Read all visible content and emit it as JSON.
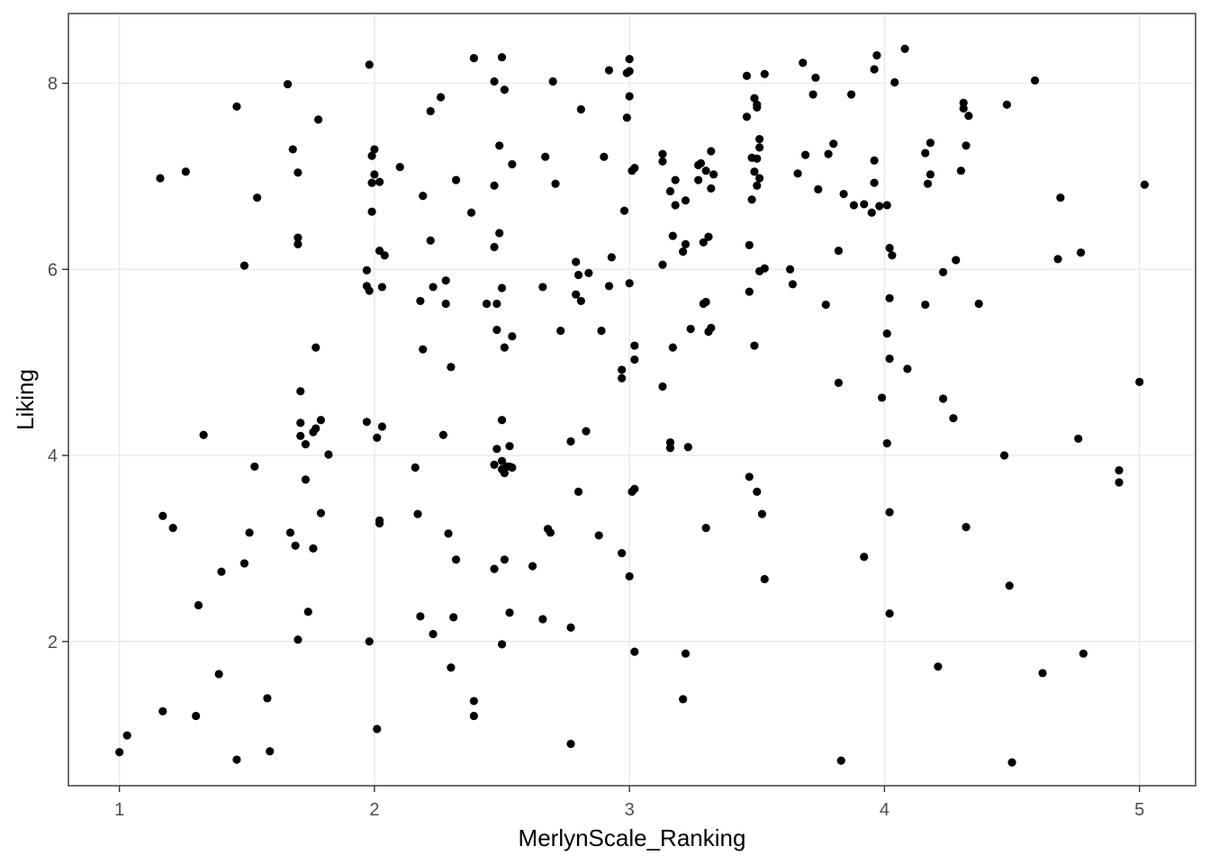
{
  "chart_data": {
    "type": "scatter",
    "title": "",
    "xlabel": "MerlynScale_Ranking",
    "ylabel": "Liking",
    "xlim": [
      0.8,
      5.22
    ],
    "ylim": [
      0.45,
      8.75
    ],
    "x_ticks": [
      1,
      2,
      3,
      4,
      5
    ],
    "y_ticks": [
      2,
      4,
      6,
      8
    ],
    "x_tick_labels": [
      "1",
      "2",
      "3",
      "4",
      "5"
    ],
    "y_tick_labels": [
      "2",
      "4",
      "6",
      "8"
    ],
    "grid": true,
    "legend": "none",
    "point_color": "#000000",
    "points": [
      [
        1.0,
        0.81
      ],
      [
        1.03,
        0.99
      ],
      [
        1.16,
        6.98
      ],
      [
        1.17,
        3.35
      ],
      [
        1.17,
        1.25
      ],
      [
        1.21,
        3.22
      ],
      [
        1.26,
        7.05
      ],
      [
        1.3,
        1.2
      ],
      [
        1.31,
        2.39
      ],
      [
        1.33,
        4.22
      ],
      [
        1.39,
        1.65
      ],
      [
        1.4,
        2.75
      ],
      [
        1.46,
        7.75
      ],
      [
        1.46,
        0.73
      ],
      [
        1.49,
        6.04
      ],
      [
        1.49,
        2.84
      ],
      [
        1.51,
        3.17
      ],
      [
        1.53,
        3.88
      ],
      [
        1.54,
        6.77
      ],
      [
        1.58,
        1.39
      ],
      [
        1.59,
        0.82
      ],
      [
        1.66,
        7.99
      ],
      [
        1.67,
        3.17
      ],
      [
        1.68,
        7.29
      ],
      [
        1.69,
        3.03
      ],
      [
        1.7,
        7.04
      ],
      [
        1.7,
        6.34
      ],
      [
        1.7,
        6.27
      ],
      [
        1.7,
        2.02
      ],
      [
        1.71,
        4.69
      ],
      [
        1.71,
        4.35
      ],
      [
        1.71,
        4.21
      ],
      [
        1.73,
        4.12
      ],
      [
        1.73,
        3.74
      ],
      [
        1.74,
        2.32
      ],
      [
        1.76,
        4.25
      ],
      [
        1.76,
        3.0
      ],
      [
        1.77,
        4.29
      ],
      [
        1.77,
        5.16
      ],
      [
        1.78,
        7.61
      ],
      [
        1.79,
        4.38
      ],
      [
        1.79,
        3.38
      ],
      [
        1.82,
        4.01
      ],
      [
        1.97,
        5.99
      ],
      [
        1.97,
        5.82
      ],
      [
        1.97,
        4.36
      ],
      [
        1.98,
        8.2
      ],
      [
        1.98,
        2.0
      ],
      [
        1.98,
        5.77
      ],
      [
        1.99,
        7.22
      ],
      [
        1.99,
        6.93
      ],
      [
        1.99,
        6.62
      ],
      [
        2.0,
        7.29
      ],
      [
        2.0,
        7.02
      ],
      [
        2.01,
        4.19
      ],
      [
        2.01,
        1.06
      ],
      [
        2.02,
        6.2
      ],
      [
        2.02,
        6.94
      ],
      [
        2.02,
        3.3
      ],
      [
        2.02,
        3.27
      ],
      [
        2.03,
        4.31
      ],
      [
        2.03,
        5.81
      ],
      [
        2.04,
        6.15
      ],
      [
        2.1,
        7.1
      ],
      [
        2.16,
        3.87
      ],
      [
        2.17,
        3.37
      ],
      [
        2.18,
        2.27
      ],
      [
        2.18,
        5.66
      ],
      [
        2.19,
        6.79
      ],
      [
        2.19,
        5.14
      ],
      [
        2.22,
        7.7
      ],
      [
        2.22,
        6.31
      ],
      [
        2.23,
        5.81
      ],
      [
        2.23,
        2.08
      ],
      [
        2.26,
        7.85
      ],
      [
        2.27,
        4.22
      ],
      [
        2.28,
        5.88
      ],
      [
        2.28,
        5.63
      ],
      [
        2.29,
        3.16
      ],
      [
        2.3,
        4.95
      ],
      [
        2.3,
        1.72
      ],
      [
        2.31,
        2.26
      ],
      [
        2.32,
        6.96
      ],
      [
        2.32,
        2.88
      ],
      [
        2.38,
        6.61
      ],
      [
        2.39,
        8.27
      ],
      [
        2.39,
        1.36
      ],
      [
        2.39,
        1.2
      ],
      [
        2.44,
        5.63
      ],
      [
        2.47,
        8.02
      ],
      [
        2.47,
        6.9
      ],
      [
        2.47,
        6.24
      ],
      [
        2.47,
        3.9
      ],
      [
        2.47,
        2.78
      ],
      [
        2.48,
        5.35
      ],
      [
        2.48,
        5.63
      ],
      [
        2.48,
        4.07
      ],
      [
        2.49,
        7.33
      ],
      [
        2.49,
        6.39
      ],
      [
        2.5,
        8.28
      ],
      [
        2.5,
        5.8
      ],
      [
        2.5,
        4.38
      ],
      [
        2.5,
        3.94
      ],
      [
        2.5,
        3.85
      ],
      [
        2.5,
        1.97
      ],
      [
        2.51,
        7.93
      ],
      [
        2.51,
        5.16
      ],
      [
        2.51,
        3.81
      ],
      [
        2.51,
        2.88
      ],
      [
        2.52,
        3.88
      ],
      [
        2.53,
        3.88
      ],
      [
        2.53,
        2.31
      ],
      [
        2.53,
        4.1
      ],
      [
        2.54,
        7.13
      ],
      [
        2.54,
        5.28
      ],
      [
        2.54,
        3.87
      ],
      [
        2.62,
        2.81
      ],
      [
        2.66,
        2.24
      ],
      [
        2.66,
        5.81
      ],
      [
        2.67,
        7.21
      ],
      [
        2.68,
        3.21
      ],
      [
        2.69,
        3.17
      ],
      [
        2.7,
        8.02
      ],
      [
        2.71,
        6.92
      ],
      [
        2.73,
        5.34
      ],
      [
        2.77,
        4.15
      ],
      [
        2.77,
        2.15
      ],
      [
        2.77,
        0.9
      ],
      [
        2.79,
        6.08
      ],
      [
        2.79,
        5.73
      ],
      [
        2.8,
        5.94
      ],
      [
        2.8,
        3.61
      ],
      [
        2.81,
        5.66
      ],
      [
        2.81,
        7.72
      ],
      [
        2.83,
        4.26
      ],
      [
        2.84,
        5.96
      ],
      [
        2.88,
        3.14
      ],
      [
        2.89,
        5.34
      ],
      [
        2.9,
        7.21
      ],
      [
        2.92,
        8.14
      ],
      [
        2.92,
        5.82
      ],
      [
        2.93,
        6.13
      ],
      [
        2.97,
        2.95
      ],
      [
        2.97,
        4.92
      ],
      [
        2.97,
        4.83
      ],
      [
        2.98,
        6.63
      ],
      [
        2.99,
        7.63
      ],
      [
        2.99,
        8.11
      ],
      [
        3.0,
        7.86
      ],
      [
        3.0,
        8.26
      ],
      [
        3.0,
        8.13
      ],
      [
        3.0,
        5.85
      ],
      [
        3.0,
        2.7
      ],
      [
        3.01,
        7.06
      ],
      [
        3.01,
        3.61
      ],
      [
        3.02,
        7.09
      ],
      [
        3.02,
        3.64
      ],
      [
        3.02,
        5.18
      ],
      [
        3.02,
        5.03
      ],
      [
        3.02,
        1.89
      ],
      [
        3.13,
        7.16
      ],
      [
        3.13,
        7.24
      ],
      [
        3.13,
        6.05
      ],
      [
        3.13,
        4.74
      ],
      [
        3.16,
        6.84
      ],
      [
        3.16,
        4.14
      ],
      [
        3.16,
        4.08
      ],
      [
        3.17,
        5.16
      ],
      [
        3.17,
        6.36
      ],
      [
        3.18,
        6.69
      ],
      [
        3.18,
        6.96
      ],
      [
        3.21,
        6.19
      ],
      [
        3.21,
        1.38
      ],
      [
        3.22,
        6.27
      ],
      [
        3.22,
        6.74
      ],
      [
        3.22,
        1.87
      ],
      [
        3.23,
        4.09
      ],
      [
        3.24,
        5.36
      ],
      [
        3.27,
        7.12
      ],
      [
        3.27,
        6.96
      ],
      [
        3.28,
        7.14
      ],
      [
        3.29,
        6.29
      ],
      [
        3.29,
        5.63
      ],
      [
        3.3,
        5.65
      ],
      [
        3.3,
        7.06
      ],
      [
        3.3,
        3.22
      ],
      [
        3.31,
        5.33
      ],
      [
        3.31,
        6.35
      ],
      [
        3.32,
        7.27
      ],
      [
        3.32,
        6.87
      ],
      [
        3.33,
        7.02
      ],
      [
        3.32,
        5.37
      ],
      [
        3.46,
        8.08
      ],
      [
        3.46,
        7.64
      ],
      [
        3.47,
        6.26
      ],
      [
        3.47,
        5.76
      ],
      [
        3.47,
        3.77
      ],
      [
        3.48,
        7.2
      ],
      [
        3.48,
        6.75
      ],
      [
        3.49,
        5.18
      ],
      [
        3.49,
        7.84
      ],
      [
        3.49,
        7.05
      ],
      [
        3.5,
        7.19
      ],
      [
        3.5,
        7.77
      ],
      [
        3.5,
        7.74
      ],
      [
        3.5,
        6.9
      ],
      [
        3.5,
        3.61
      ],
      [
        3.51,
        7.4
      ],
      [
        3.51,
        7.31
      ],
      [
        3.51,
        6.98
      ],
      [
        3.51,
        5.98
      ],
      [
        3.52,
        3.37
      ],
      [
        3.53,
        2.67
      ],
      [
        3.53,
        8.1
      ],
      [
        3.53,
        6.01
      ],
      [
        3.63,
        6.0
      ],
      [
        3.64,
        5.84
      ],
      [
        3.66,
        7.03
      ],
      [
        3.68,
        8.22
      ],
      [
        3.69,
        7.23
      ],
      [
        3.72,
        7.88
      ],
      [
        3.73,
        8.06
      ],
      [
        3.74,
        6.86
      ],
      [
        3.77,
        5.62
      ],
      [
        3.78,
        7.24
      ],
      [
        3.8,
        7.35
      ],
      [
        3.82,
        4.78
      ],
      [
        3.82,
        6.2
      ],
      [
        3.83,
        0.72
      ],
      [
        3.84,
        6.81
      ],
      [
        3.87,
        7.88
      ],
      [
        3.88,
        6.69
      ],
      [
        3.92,
        2.91
      ],
      [
        3.92,
        6.7
      ],
      [
        3.95,
        6.61
      ],
      [
        3.96,
        8.15
      ],
      [
        3.96,
        7.17
      ],
      [
        3.96,
        6.93
      ],
      [
        3.97,
        8.3
      ],
      [
        3.98,
        6.68
      ],
      [
        3.99,
        4.62
      ],
      [
        4.01,
        6.69
      ],
      [
        4.01,
        4.13
      ],
      [
        4.01,
        5.31
      ],
      [
        4.02,
        6.23
      ],
      [
        4.02,
        5.04
      ],
      [
        4.02,
        5.69
      ],
      [
        4.02,
        3.39
      ],
      [
        4.02,
        2.3
      ],
      [
        4.03,
        6.15
      ],
      [
        4.04,
        8.01
      ],
      [
        4.08,
        8.37
      ],
      [
        4.09,
        4.93
      ],
      [
        4.16,
        7.25
      ],
      [
        4.16,
        5.62
      ],
      [
        4.17,
        6.92
      ],
      [
        4.18,
        7.36
      ],
      [
        4.18,
        7.02
      ],
      [
        4.21,
        1.73
      ],
      [
        4.23,
        4.61
      ],
      [
        4.23,
        5.97
      ],
      [
        4.27,
        4.4
      ],
      [
        4.28,
        6.1
      ],
      [
        4.3,
        7.06
      ],
      [
        4.31,
        7.79
      ],
      [
        4.31,
        7.73
      ],
      [
        4.32,
        3.23
      ],
      [
        4.32,
        7.33
      ],
      [
        4.33,
        7.65
      ],
      [
        4.37,
        5.63
      ],
      [
        4.47,
        4.0
      ],
      [
        4.48,
        7.77
      ],
      [
        4.49,
        2.6
      ],
      [
        4.5,
        0.7
      ],
      [
        4.59,
        8.03
      ],
      [
        4.62,
        1.66
      ],
      [
        4.68,
        6.11
      ],
      [
        4.69,
        6.77
      ],
      [
        4.76,
        4.18
      ],
      [
        4.77,
        6.18
      ],
      [
        4.78,
        1.87
      ],
      [
        4.92,
        3.84
      ],
      [
        4.92,
        3.71
      ],
      [
        5.0,
        4.79
      ],
      [
        5.02,
        6.91
      ]
    ]
  }
}
